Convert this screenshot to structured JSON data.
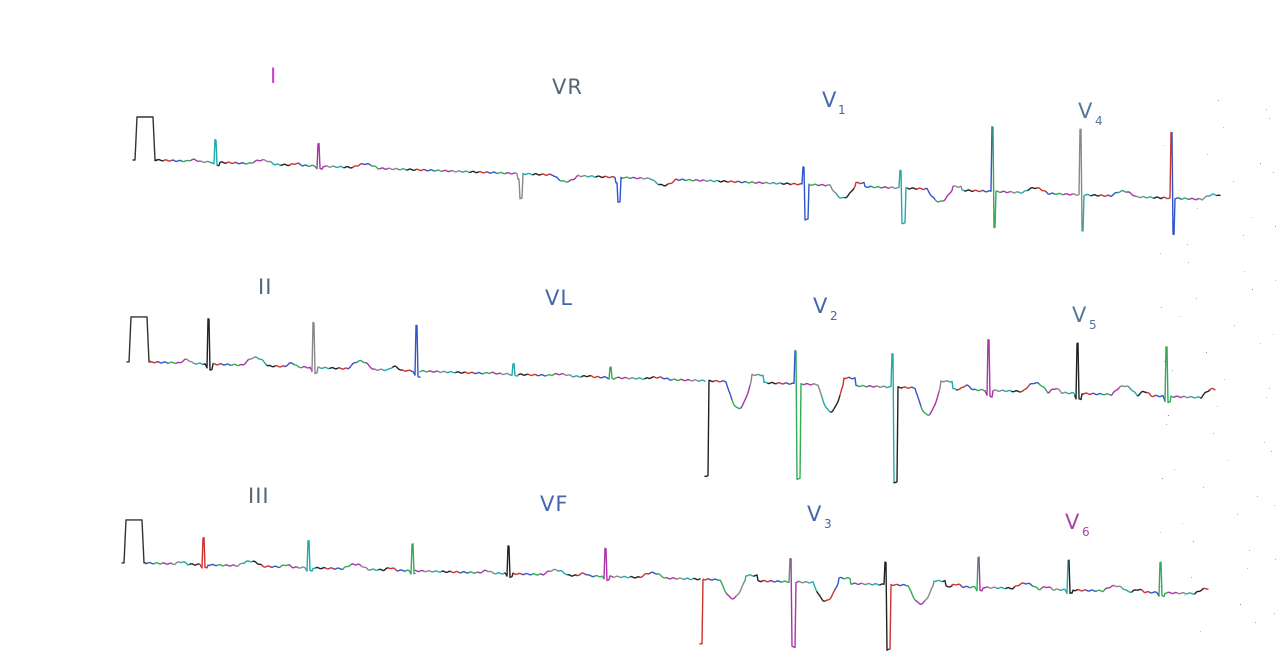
{
  "ecg": {
    "rows": [
      {
        "leads": [
          {
            "name": "I",
            "sub": ""
          },
          {
            "name": "VR",
            "sub": ""
          },
          {
            "name": "V",
            "sub": "1"
          },
          {
            "name": "V",
            "sub": "4"
          }
        ]
      },
      {
        "leads": [
          {
            "name": "II",
            "sub": ""
          },
          {
            "name": "VL",
            "sub": ""
          },
          {
            "name": "V",
            "sub": "2"
          },
          {
            "name": "V",
            "sub": "5"
          }
        ]
      },
      {
        "leads": [
          {
            "name": "III",
            "sub": ""
          },
          {
            "name": "VF",
            "sub": ""
          },
          {
            "name": "V",
            "sub": "3"
          },
          {
            "name": "V",
            "sub": "6"
          }
        ]
      }
    ],
    "colors": {
      "background": "#ffffff",
      "label_colors": [
        "#cc44cc",
        "#556677",
        "#4466aa",
        "#557799"
      ],
      "trace_palette": [
        "#222222",
        "#cc3333",
        "#3355cc",
        "#33aa55",
        "#aa33aa",
        "#888888",
        "#22aaaa"
      ]
    }
  }
}
